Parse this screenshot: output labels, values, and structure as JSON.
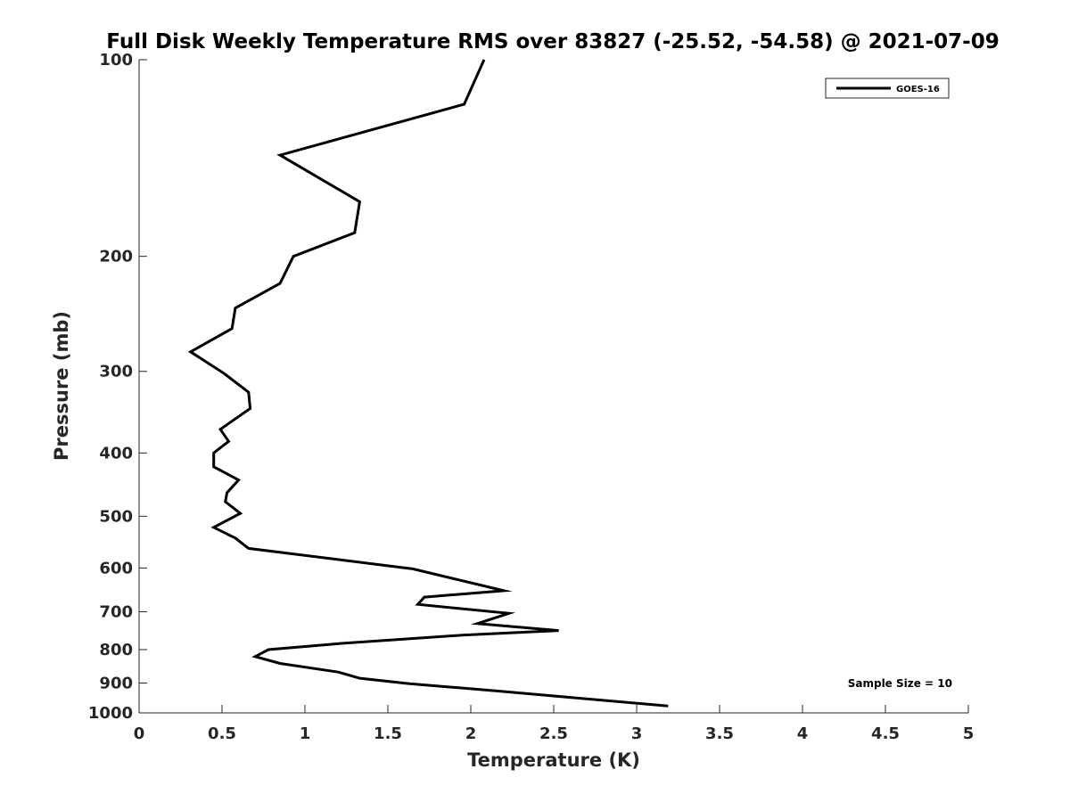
{
  "chart_data": {
    "type": "line",
    "title": "Full Disk Weekly Temperature RMS over 83827 (-25.52, -54.58) @ 2021-07-09",
    "xlabel": "Temperature (K)",
    "ylabel": "Pressure (mb)",
    "xlim": [
      0,
      5
    ],
    "ylim": [
      100,
      1000
    ],
    "yscale": "log",
    "yreversed": true,
    "x_ticks": [
      0,
      0.5,
      1,
      1.5,
      2,
      2.5,
      3,
      3.5,
      4,
      4.5,
      5
    ],
    "x_tick_labels": [
      "0",
      "0.5",
      "1",
      "1.5",
      "2",
      "2.5",
      "3",
      "3.5",
      "4",
      "4.5",
      "5"
    ],
    "y_ticks": [
      100,
      200,
      300,
      400,
      500,
      600,
      700,
      800,
      900,
      1000
    ],
    "y_tick_labels": [
      "100",
      "200",
      "300",
      "400",
      "500",
      "600",
      "700",
      "800",
      "900",
      "1000"
    ],
    "grid": false,
    "legend_position": "top-right",
    "annotation": "Sample Size = 10",
    "series": [
      {
        "name": "GOES-16",
        "color": "#000000",
        "x": [
          2.08,
          1.96,
          0.85,
          1.33,
          1.3,
          0.93,
          0.85,
          0.58,
          0.56,
          0.31,
          0.51,
          0.66,
          0.67,
          0.49,
          0.54,
          0.45,
          0.45,
          0.6,
          0.53,
          0.52,
          0.61,
          0.45,
          0.58,
          0.66,
          1.65,
          2.2,
          1.72,
          1.68,
          2.23,
          2.04,
          2.53,
          1.96,
          1.24,
          0.78,
          0.7,
          0.85,
          1.2,
          1.33,
          1.63,
          2.15,
          2.56,
          3.19
        ],
        "y": [
          100,
          117,
          140,
          165,
          184,
          200,
          220,
          240,
          258,
          280,
          302,
          323,
          342,
          368,
          384,
          400,
          420,
          440,
          460,
          475,
          495,
          520,
          540,
          560,
          602,
          650,
          665,
          682,
          704,
          730,
          748,
          760,
          782,
          800,
          820,
          840,
          866,
          885,
          902,
          925,
          945,
          976
        ]
      }
    ]
  }
}
